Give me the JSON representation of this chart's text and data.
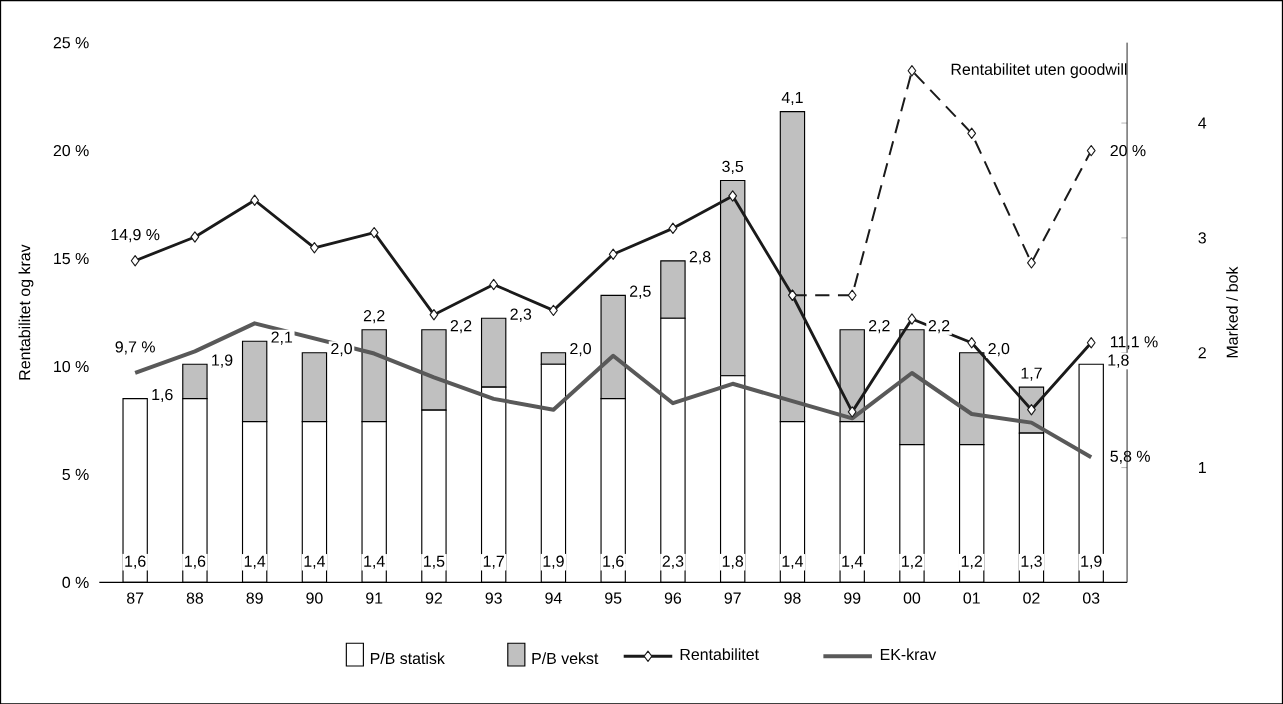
{
  "chart_data": {
    "type": "bar",
    "stacked": true,
    "categories": [
      "87",
      "88",
      "89",
      "90",
      "91",
      "92",
      "93",
      "94",
      "95",
      "96",
      "97",
      "98",
      "99",
      "00",
      "01",
      "02",
      "03"
    ],
    "series": [
      {
        "name": "P/B statisk",
        "color": "#ffffff",
        "axis": "y2",
        "values": [
          1.6,
          1.6,
          1.4,
          1.4,
          1.4,
          1.5,
          1.7,
          1.9,
          1.6,
          2.3,
          1.8,
          1.4,
          1.4,
          1.2,
          1.2,
          1.3,
          1.9
        ],
        "value_labels": [
          "1,6",
          "1,6",
          "1,4",
          "1,4",
          "1,4",
          "1,5",
          "1,7",
          "1,9",
          "1,6",
          "2,3",
          "1,8",
          "1,4",
          "1,4",
          "1,2",
          "1,2",
          "1,3",
          "1,9"
        ]
      },
      {
        "name": "P/B vekst",
        "color": "#c0c0c0",
        "axis": "y2",
        "values": [
          0.0,
          0.3,
          0.7,
          0.6,
          0.8,
          0.7,
          0.6,
          0.1,
          0.9,
          0.5,
          1.7,
          2.7,
          0.8,
          1.0,
          0.8,
          0.4,
          null
        ]
      },
      {
        "name": "Rentabilitet",
        "type": "line",
        "color": "#1a1a1a",
        "marker": "diamond",
        "values": [
          14.9,
          16.0,
          17.7,
          15.5,
          16.2,
          12.4,
          13.8,
          12.6,
          15.2,
          16.4,
          17.9,
          13.3,
          7.9,
          12.2,
          11.1,
          8.0,
          11.1
        ]
      },
      {
        "type": "line",
        "color": "#1a1a1a",
        "marker": "diamond",
        "line_style": "dashed",
        "values": [
          null,
          null,
          null,
          null,
          null,
          null,
          null,
          null,
          null,
          null,
          null,
          13.3,
          13.3,
          23.7,
          20.8,
          14.8,
          20.0
        ]
      },
      {
        "name": "EK-krav",
        "type": "line",
        "color": "#595959",
        "values": [
          9.7,
          10.7,
          12.0,
          11.3,
          10.6,
          9.5,
          8.5,
          8.0,
          10.5,
          8.3,
          9.2,
          8.4,
          7.6,
          9.7,
          7.8,
          7.4,
          5.8
        ]
      }
    ],
    "totals": [
      "1,6",
      "1,9",
      "2,1",
      "2,0",
      "2,2",
      "2,2",
      "2,3",
      "2,0",
      "2,5",
      "2,8",
      "3,5",
      "4,1",
      "2,2",
      "2,2",
      "2,0",
      "1,7",
      "1,8"
    ],
    "ylabel": "Rentabilitet og krav",
    "y2label": "Marked / bok",
    "ylim": [
      0,
      25
    ],
    "yticks": [
      {
        "value": 0,
        "label": "0 %"
      },
      {
        "value": 5,
        "label": "5 %"
      },
      {
        "value": 10,
        "label": "10 %"
      },
      {
        "value": 15,
        "label": "15 %"
      },
      {
        "value": 20,
        "label": "20 %"
      },
      {
        "value": 25,
        "label": "25 %"
      }
    ],
    "y2lim": [
      0,
      4.7
    ],
    "y2ticks": [
      1,
      2,
      3,
      4
    ],
    "legend": "bottom",
    "annotations": [
      {
        "text": "14,9 %",
        "x": "87",
        "y": 14.9
      },
      {
        "text": "9,7 %",
        "x": "87",
        "y": 9.7
      },
      {
        "text": "11,1 %",
        "x": "03",
        "y": 11.1
      },
      {
        "text": "5,8 %",
        "x": "03",
        "y": 5.8
      },
      {
        "text": "20 %",
        "x": "03",
        "y": 20.0
      },
      {
        "text": "Rentabilitet uten goodwill",
        "x": "00",
        "y": 23.7
      }
    ]
  }
}
